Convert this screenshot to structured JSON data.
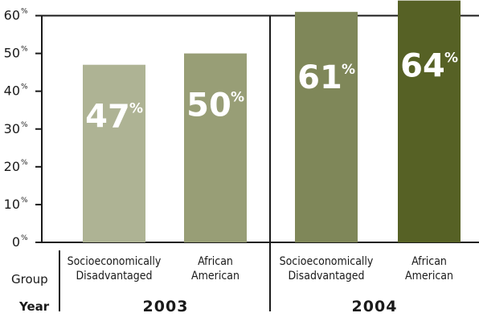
{
  "chart_data": {
    "type": "bar",
    "ylim": [
      0,
      60
    ],
    "y_ticks": [
      "0",
      "10",
      "20",
      "30",
      "40",
      "50",
      "60"
    ],
    "tick_suffix": "%",
    "row_labels": {
      "group": "Group",
      "year": "Year"
    },
    "groups": [
      {
        "year": "2003",
        "bars": [
          {
            "label_lines": [
              "Socioeconomically",
              "Disadvantaged"
            ],
            "value": 47,
            "value_label": "47",
            "color": "#aeb394"
          },
          {
            "label_lines": [
              "African",
              "American"
            ],
            "value": 50,
            "value_label": "50",
            "color": "#989e76"
          }
        ]
      },
      {
        "year": "2004",
        "bars": [
          {
            "label_lines": [
              "Socioeconomically",
              "Disadvantaged"
            ],
            "value": 61,
            "value_label": "61",
            "color": "#7f8759"
          },
          {
            "label_lines": [
              "African",
              "American"
            ],
            "value": 64,
            "value_label": "64",
            "color": "#566125"
          }
        ]
      }
    ],
    "grid_line_at": 60,
    "legend": "none"
  }
}
